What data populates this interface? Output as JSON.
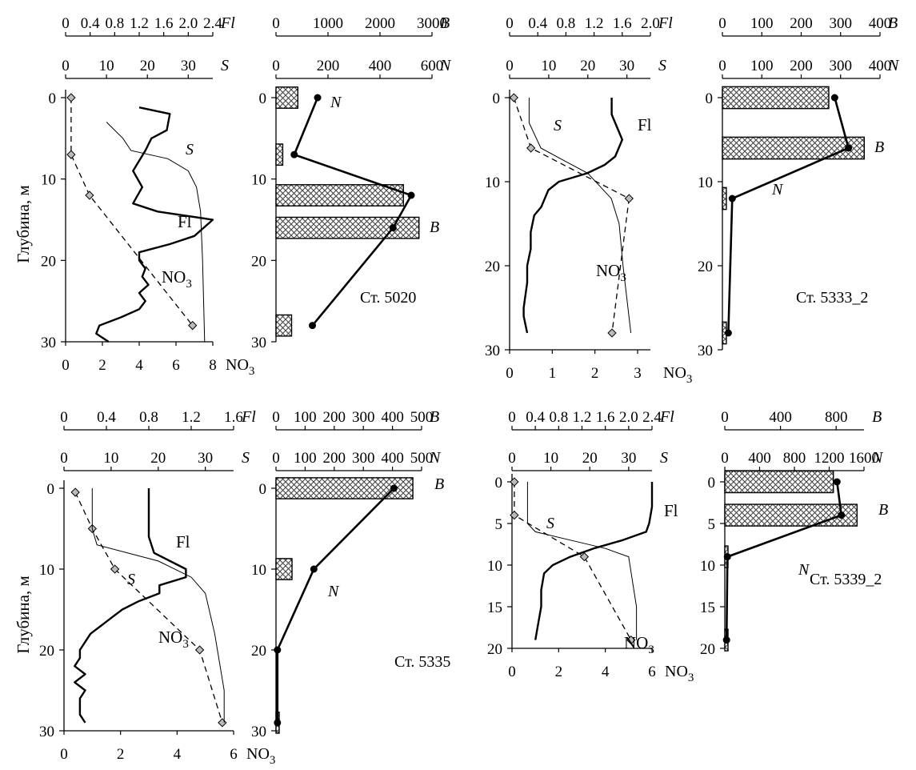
{
  "y_axis_label": "Глубина, м",
  "chart_data": [
    {
      "station": "Ст. 5020",
      "type": "line",
      "depth_ticks": [
        0,
        10,
        20,
        30
      ],
      "ylim": [
        0,
        30
      ],
      "axes": {
        "NO3": {
          "label": "NO3",
          "ticks": [
            "0",
            "2",
            "4",
            "6",
            "8"
          ],
          "range": [
            0,
            8
          ]
        },
        "S": {
          "label": "S",
          "ticks": [
            "0",
            "10",
            "20",
            "30"
          ],
          "range": [
            0,
            36
          ]
        },
        "Fl": {
          "label": "Fl",
          "ticks": [
            "0",
            "0.4",
            "0.8",
            "1.2",
            "1.6",
            "2.0",
            "2.4"
          ],
          "range": [
            0,
            2.4
          ]
        },
        "N": {
          "label": "N",
          "ticks": [
            "0",
            "200",
            "400",
            "600"
          ],
          "range": [
            0,
            600
          ]
        },
        "B": {
          "label": "B",
          "ticks": [
            "0",
            "1000",
            "2000",
            "3000"
          ],
          "range": [
            0,
            3000
          ]
        }
      },
      "series": [
        {
          "name": "NO3",
          "style": "dashed-diamond",
          "points": [
            [
              0.3,
              0
            ],
            [
              0.3,
              7
            ],
            [
              1.3,
              12
            ],
            [
              6.9,
              28
            ]
          ]
        },
        {
          "name": "S",
          "style": "thin",
          "points": [
            [
              10,
              3
            ],
            [
              14,
              5
            ],
            [
              16,
              6.5
            ],
            [
              25,
              7.5
            ],
            [
              30,
              9
            ],
            [
              32,
              11
            ],
            [
              33,
              14
            ],
            [
              33.5,
              20
            ],
            [
              34,
              30
            ]
          ]
        },
        {
          "name": "Fl",
          "style": "thick",
          "points": [
            [
              1.2,
              1.2
            ],
            [
              1.7,
              2
            ],
            [
              1.65,
              4
            ],
            [
              1.4,
              5
            ],
            [
              1.3,
              6.5
            ],
            [
              1.1,
              9
            ],
            [
              1.25,
              11
            ],
            [
              1.1,
              13
            ],
            [
              1.5,
              14
            ],
            [
              2.4,
              15
            ],
            [
              2.1,
              17
            ],
            [
              1.7,
              18
            ],
            [
              1.2,
              19
            ],
            [
              1.2,
              20
            ],
            [
              1.3,
              21
            ],
            [
              1.25,
              22
            ],
            [
              1.35,
              23
            ],
            [
              1.2,
              24
            ],
            [
              1.3,
              25
            ],
            [
              1.2,
              26
            ],
            [
              0.9,
              27
            ],
            [
              0.55,
              28
            ],
            [
              0.5,
              29
            ],
            [
              0.7,
              30
            ]
          ]
        },
        {
          "name": "N",
          "style": "thick-dot",
          "points": [
            [
              160,
              0
            ],
            [
              70,
              7
            ],
            [
              520,
              12
            ],
            [
              450,
              16
            ],
            [
              140,
              28
            ]
          ]
        },
        {
          "name": "B",
          "style": "bars",
          "points": [
            [
              420,
              0
            ],
            [
              130,
              7
            ],
            [
              2450,
              12
            ],
            [
              2750,
              16
            ],
            [
              300,
              28
            ]
          ]
        }
      ]
    },
    {
      "station": "Ст. 5333_2",
      "type": "line",
      "depth_ticks": [
        0,
        10,
        20,
        30
      ],
      "ylim": [
        0,
        30
      ],
      "axes": {
        "NO3": {
          "label": "NO3",
          "ticks": [
            "0",
            "1",
            "2",
            "3"
          ],
          "range": [
            0,
            3.3
          ]
        },
        "S": {
          "label": "S",
          "ticks": [
            "0",
            "10",
            "20",
            "30"
          ],
          "range": [
            0,
            36
          ]
        },
        "Fl": {
          "label": "Fl",
          "ticks": [
            "0",
            "0.4",
            "0.8",
            "1.2",
            "1.6",
            "2.0"
          ],
          "range": [
            0,
            2.0
          ]
        },
        "N": {
          "label": "N",
          "ticks": [
            "0",
            "100",
            "200",
            "300",
            "400"
          ],
          "range": [
            0,
            400
          ]
        },
        "B": {
          "label": "B",
          "ticks": [
            "0",
            "100",
            "200",
            "300",
            "400"
          ],
          "range": [
            0,
            400
          ]
        }
      },
      "series": [
        {
          "name": "NO3",
          "style": "dashed-diamond",
          "points": [
            [
              0.1,
              0
            ],
            [
              0.5,
              6
            ],
            [
              2.8,
              12
            ],
            [
              2.4,
              28
            ]
          ]
        },
        {
          "name": "S",
          "style": "thin",
          "points": [
            [
              5,
              0
            ],
            [
              5,
              3
            ],
            [
              8,
              6
            ],
            [
              14,
              7.5
            ],
            [
              20,
              9
            ],
            [
              26,
              12
            ],
            [
              28,
              15
            ],
            [
              29,
              20
            ],
            [
              31,
              28
            ]
          ]
        },
        {
          "name": "Fl",
          "style": "thick",
          "points": [
            [
              1.45,
              0
            ],
            [
              1.45,
              2
            ],
            [
              1.5,
              3
            ],
            [
              1.6,
              5
            ],
            [
              1.5,
              7
            ],
            [
              1.35,
              8
            ],
            [
              1.1,
              9
            ],
            [
              0.7,
              10
            ],
            [
              0.55,
              11
            ],
            [
              0.45,
              13
            ],
            [
              0.35,
              14
            ],
            [
              0.3,
              16
            ],
            [
              0.3,
              18
            ],
            [
              0.25,
              20
            ],
            [
              0.25,
              22
            ],
            [
              0.2,
              25
            ],
            [
              0.2,
              26
            ],
            [
              0.25,
              28
            ]
          ]
        },
        {
          "name": "N",
          "style": "thick-dot",
          "points": [
            [
              285,
              0
            ],
            [
              320,
              6
            ],
            [
              25,
              12
            ],
            [
              15,
              28
            ]
          ]
        },
        {
          "name": "B",
          "style": "bars",
          "points": [
            [
              270,
              0
            ],
            [
              360,
              6
            ],
            [
              10,
              12
            ],
            [
              10,
              28
            ]
          ]
        }
      ]
    },
    {
      "station": "Ст. 5335",
      "type": "line",
      "depth_ticks": [
        0,
        10,
        20,
        30
      ],
      "ylim": [
        0,
        30
      ],
      "axes": {
        "NO3": {
          "label": "NO3",
          "ticks": [
            "0",
            "2",
            "4",
            "6"
          ],
          "range": [
            0,
            6
          ]
        },
        "S": {
          "label": "S",
          "ticks": [
            "0",
            "10",
            "20",
            "30"
          ],
          "range": [
            0,
            36
          ]
        },
        "Fl": {
          "label": "Fl",
          "ticks": [
            "0",
            "0.4",
            "0.8",
            "1.2",
            "1.6"
          ],
          "range": [
            0,
            1.6
          ]
        },
        "N": {
          "label": "N",
          "ticks": [
            "0",
            "100",
            "200",
            "300",
            "400",
            "500"
          ],
          "range": [
            0,
            500
          ]
        },
        "B": {
          "label": "B",
          "ticks": [
            "0",
            "100",
            "200",
            "300",
            "400",
            "500"
          ],
          "range": [
            0,
            500
          ]
        }
      },
      "series": [
        {
          "name": "NO3",
          "style": "dashed-diamond",
          "points": [
            [
              0.4,
              0.5
            ],
            [
              1,
              5
            ],
            [
              1.8,
              10
            ],
            [
              4.8,
              20
            ],
            [
              5.6,
              29
            ]
          ]
        },
        {
          "name": "S",
          "style": "thin",
          "points": [
            [
              6,
              0
            ],
            [
              6,
              5
            ],
            [
              7,
              7
            ],
            [
              20,
              9
            ],
            [
              27,
              11
            ],
            [
              30,
              13
            ],
            [
              32,
              18
            ],
            [
              34,
              25
            ],
            [
              34,
              29
            ]
          ]
        },
        {
          "name": "Fl",
          "style": "thick",
          "points": [
            [
              0.8,
              0
            ],
            [
              0.8,
              6
            ],
            [
              0.85,
              8
            ],
            [
              1.15,
              10
            ],
            [
              1.15,
              11
            ],
            [
              0.9,
              12
            ],
            [
              0.9,
              13
            ],
            [
              0.7,
              14
            ],
            [
              0.55,
              15
            ],
            [
              0.45,
              16
            ],
            [
              0.25,
              18
            ],
            [
              0.15,
              20
            ],
            [
              0.15,
              21
            ],
            [
              0.1,
              22
            ],
            [
              0.2,
              23
            ],
            [
              0.1,
              24
            ],
            [
              0.2,
              25
            ],
            [
              0.15,
              26
            ],
            [
              0.15,
              27
            ],
            [
              0.15,
              28
            ],
            [
              0.2,
              29
            ]
          ]
        },
        {
          "name": "N",
          "style": "thick-dot",
          "points": [
            [
              405,
              0
            ],
            [
              130,
              10
            ],
            [
              5,
              20
            ],
            [
              5,
              29
            ]
          ]
        },
        {
          "name": "B",
          "style": "bars",
          "points": [
            [
              470,
              0
            ],
            [
              55,
              10
            ],
            [
              5,
              29
            ]
          ]
        }
      ]
    },
    {
      "station": "Ст. 5339_2",
      "type": "line",
      "depth_ticks": [
        0,
        5,
        10,
        15,
        20
      ],
      "ylim": [
        0,
        20
      ],
      "axes": {
        "NO3": {
          "label": "NO3",
          "ticks": [
            "0",
            "2",
            "4",
            "6"
          ],
          "range": [
            0,
            6
          ]
        },
        "S": {
          "label": "S",
          "ticks": [
            "0",
            "10",
            "20",
            "30"
          ],
          "range": [
            0,
            36
          ]
        },
        "Fl": {
          "label": "Fl",
          "ticks": [
            "0",
            "0.4",
            "0.8",
            "1.2",
            "1.6",
            "2.0",
            "2.4"
          ],
          "range": [
            0,
            2.4
          ]
        },
        "N": {
          "label": "N",
          "ticks": [
            "0",
            "400",
            "800",
            "1200",
            "1600"
          ],
          "range": [
            0,
            1600
          ]
        },
        "B": {
          "label": "B",
          "ticks": [
            "0",
            "400",
            "800"
          ],
          "range": [
            0,
            1000
          ]
        }
      },
      "series": [
        {
          "name": "NO3",
          "style": "dashed-diamond",
          "points": [
            [
              0.1,
              0
            ],
            [
              0.1,
              4
            ],
            [
              3.1,
              9
            ],
            [
              5.1,
              19
            ]
          ]
        },
        {
          "name": "S",
          "style": "thin",
          "points": [
            [
              4,
              0
            ],
            [
              4,
              5
            ],
            [
              6,
              6
            ],
            [
              15,
              7
            ],
            [
              24,
              8
            ],
            [
              30,
              9
            ],
            [
              31,
              12
            ],
            [
              32,
              15
            ],
            [
              32,
              19
            ]
          ]
        },
        {
          "name": "Fl",
          "style": "thick",
          "points": [
            [
              2.4,
              0
            ],
            [
              2.4,
              3
            ],
            [
              2.35,
              5
            ],
            [
              2.3,
              6
            ],
            [
              1.9,
              7
            ],
            [
              1.4,
              8
            ],
            [
              1.0,
              9
            ],
            [
              0.7,
              10
            ],
            [
              0.55,
              11
            ],
            [
              0.5,
              13
            ],
            [
              0.5,
              15
            ],
            [
              0.45,
              17
            ],
            [
              0.4,
              19
            ]
          ]
        },
        {
          "name": "N",
          "style": "thick-dot",
          "points": [
            [
              1290,
              0
            ],
            [
              1340,
              4
            ],
            [
              30,
              9
            ],
            [
              20,
              19
            ]
          ]
        },
        {
          "name": "B",
          "style": "bars",
          "points": [
            [
              780,
              0
            ],
            [
              950,
              4
            ],
            [
              15,
              9
            ],
            [
              10,
              19
            ]
          ]
        }
      ]
    }
  ]
}
